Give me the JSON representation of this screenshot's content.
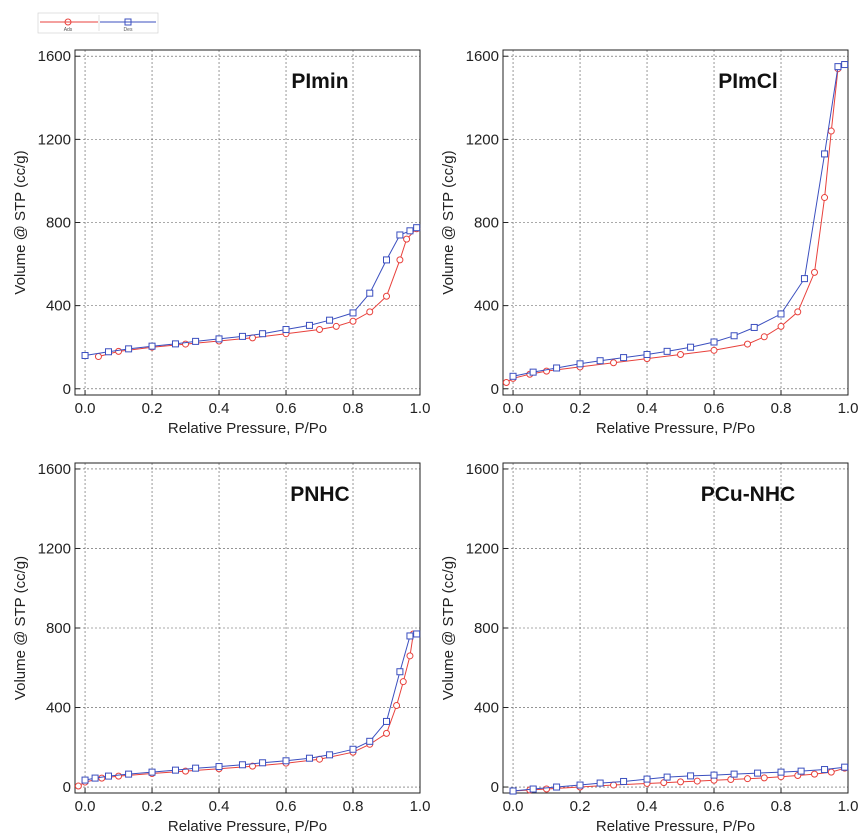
{
  "legend": [
    {
      "label": "Ads",
      "color": "#e8413c",
      "marker": "circle"
    },
    {
      "label": "Des",
      "color": "#3b4fbf",
      "marker": "square"
    }
  ],
  "chart_data": [
    {
      "type": "line",
      "title": "PImin",
      "xlabel": "Relative Pressure, P/Po",
      "ylabel": "Volume @ STP (cc/g)",
      "xlim": [
        -0.03,
        1.0
      ],
      "ylim": [
        -30,
        1630
      ],
      "xticks": [
        "0.0",
        "0.2",
        "0.4",
        "0.6",
        "0.8",
        "1.0"
      ],
      "yticks": [
        "0",
        "400",
        "800",
        "1200",
        "1600"
      ],
      "grid": true,
      "series": [
        {
          "name": "Ads",
          "color": "#e8413c",
          "marker": "circle",
          "x": [
            0.04,
            0.1,
            0.2,
            0.3,
            0.4,
            0.5,
            0.6,
            0.7,
            0.75,
            0.8,
            0.85,
            0.9,
            0.94,
            0.96,
            0.99
          ],
          "y": [
            155,
            180,
            200,
            215,
            230,
            245,
            265,
            285,
            300,
            325,
            370,
            445,
            620,
            720,
            770
          ]
        },
        {
          "name": "Des",
          "color": "#3b4fbf",
          "marker": "square",
          "x": [
            0.0,
            0.07,
            0.13,
            0.2,
            0.27,
            0.33,
            0.4,
            0.47,
            0.53,
            0.6,
            0.67,
            0.73,
            0.8,
            0.85,
            0.9,
            0.94,
            0.97,
            0.99
          ],
          "y": [
            160,
            178,
            192,
            205,
            216,
            228,
            240,
            252,
            265,
            285,
            305,
            330,
            365,
            460,
            620,
            740,
            760,
            775
          ]
        }
      ]
    },
    {
      "type": "line",
      "title": "PImCl",
      "xlabel": "Relative Pressure, P/Po",
      "ylabel": "Volume @ STP (cc/g)",
      "xlim": [
        -0.03,
        1.0
      ],
      "ylim": [
        -30,
        1630
      ],
      "xticks": [
        "0.0",
        "0.2",
        "0.4",
        "0.6",
        "0.8",
        "1.0"
      ],
      "yticks": [
        "0",
        "400",
        "800",
        "1200",
        "1600"
      ],
      "grid": true,
      "series": [
        {
          "name": "Ads",
          "color": "#e8413c",
          "marker": "circle",
          "x": [
            -0.02,
            0.0,
            0.05,
            0.1,
            0.2,
            0.3,
            0.4,
            0.5,
            0.6,
            0.7,
            0.75,
            0.8,
            0.85,
            0.9,
            0.93,
            0.95,
            0.97,
            0.99
          ],
          "y": [
            30,
            50,
            70,
            85,
            105,
            125,
            145,
            165,
            185,
            215,
            250,
            300,
            370,
            560,
            920,
            1240,
            1540,
            1560
          ]
        },
        {
          "name": "Des",
          "color": "#3b4fbf",
          "marker": "square",
          "x": [
            0.0,
            0.06,
            0.13,
            0.2,
            0.26,
            0.33,
            0.4,
            0.46,
            0.53,
            0.6,
            0.66,
            0.72,
            0.8,
            0.87,
            0.93,
            0.97,
            0.99
          ],
          "y": [
            60,
            80,
            100,
            120,
            135,
            150,
            165,
            180,
            200,
            225,
            255,
            295,
            360,
            530,
            1130,
            1550,
            1560
          ]
        }
      ]
    },
    {
      "type": "line",
      "title": "PNHC",
      "xlabel": "Relative Pressure, P/Po",
      "ylabel": "Volume @ STP (cc/g)",
      "xlim": [
        -0.03,
        1.0
      ],
      "ylim": [
        -30,
        1630
      ],
      "xticks": [
        "0.0",
        "0.2",
        "0.4",
        "0.6",
        "0.8",
        "1.0"
      ],
      "yticks": [
        "0",
        "400",
        "800",
        "1200",
        "1600"
      ],
      "grid": true,
      "series": [
        {
          "name": "Ads",
          "color": "#e8413c",
          "marker": "circle",
          "x": [
            -0.02,
            0.0,
            0.05,
            0.1,
            0.2,
            0.3,
            0.4,
            0.5,
            0.6,
            0.7,
            0.8,
            0.85,
            0.9,
            0.93,
            0.95,
            0.97,
            0.98
          ],
          "y": [
            5,
            25,
            45,
            55,
            68,
            80,
            92,
            105,
            120,
            140,
            175,
            215,
            270,
            410,
            530,
            660,
            770
          ]
        },
        {
          "name": "Des",
          "color": "#3b4fbf",
          "marker": "square",
          "x": [
            0.0,
            0.03,
            0.07,
            0.13,
            0.2,
            0.27,
            0.33,
            0.4,
            0.47,
            0.53,
            0.6,
            0.67,
            0.73,
            0.8,
            0.85,
            0.9,
            0.94,
            0.97,
            0.99
          ],
          "y": [
            35,
            45,
            55,
            65,
            75,
            85,
            95,
            103,
            112,
            122,
            132,
            145,
            162,
            190,
            230,
            330,
            580,
            760,
            770
          ]
        }
      ]
    },
    {
      "type": "line",
      "title": "PCu-NHC",
      "xlabel": "Relative Pressure, P/Po",
      "ylabel": "Volume @ STP (cc/g)",
      "xlim": [
        -0.03,
        1.0
      ],
      "ylim": [
        -30,
        1630
      ],
      "xticks": [
        "0.0",
        "0.2",
        "0.4",
        "0.6",
        "0.8",
        "1.0"
      ],
      "yticks": [
        "0",
        "400",
        "800",
        "1200",
        "1600"
      ],
      "grid": true,
      "series": [
        {
          "name": "Ads",
          "color": "#e8413c",
          "marker": "circle",
          "x": [
            0.0,
            0.05,
            0.1,
            0.2,
            0.3,
            0.4,
            0.45,
            0.5,
            0.55,
            0.6,
            0.65,
            0.7,
            0.75,
            0.8,
            0.85,
            0.9,
            0.95,
            0.99
          ],
          "y": [
            -20,
            -15,
            -10,
            0,
            10,
            18,
            22,
            26,
            30,
            34,
            38,
            42,
            46,
            52,
            58,
            65,
            75,
            95
          ]
        },
        {
          "name": "Des",
          "color": "#3b4fbf",
          "marker": "square",
          "x": [
            0.0,
            0.06,
            0.13,
            0.2,
            0.26,
            0.33,
            0.4,
            0.46,
            0.53,
            0.6,
            0.66,
            0.73,
            0.8,
            0.86,
            0.93,
            0.99
          ],
          "y": [
            -20,
            -10,
            0,
            10,
            20,
            28,
            40,
            50,
            56,
            60,
            65,
            70,
            75,
            80,
            88,
            100
          ]
        }
      ]
    }
  ]
}
